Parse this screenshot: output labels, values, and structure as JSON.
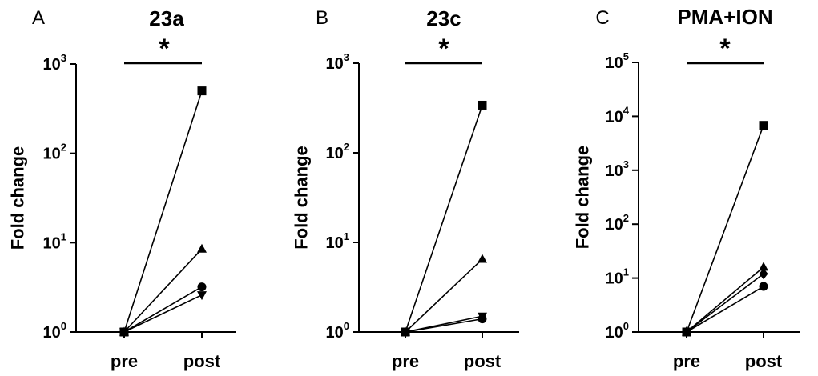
{
  "chart_data": [
    {
      "type": "line",
      "panel_label": "A",
      "title": "23a",
      "xlabel": "",
      "ylabel": "Fold change",
      "yscale": "log",
      "ylim": [
        1,
        1000
      ],
      "y_ticks": [
        {
          "base": "10",
          "exp": "0"
        },
        {
          "base": "10",
          "exp": "1"
        },
        {
          "base": "10",
          "exp": "2"
        },
        {
          "base": "10",
          "exp": "3"
        }
      ],
      "categories": [
        "pre",
        "post"
      ],
      "significance": "*",
      "series": [
        {
          "marker": "square",
          "values": [
            1,
            500
          ]
        },
        {
          "marker": "triangle-up",
          "values": [
            1,
            8.5
          ]
        },
        {
          "marker": "circle",
          "values": [
            1,
            3.2
          ]
        },
        {
          "marker": "triangle-down",
          "values": [
            1,
            2.6
          ]
        }
      ]
    },
    {
      "type": "line",
      "panel_label": "B",
      "title": "23c",
      "xlabel": "",
      "ylabel": "Fold change",
      "yscale": "log",
      "ylim": [
        1,
        1000
      ],
      "y_ticks": [
        {
          "base": "10",
          "exp": "0"
        },
        {
          "base": "10",
          "exp": "1"
        },
        {
          "base": "10",
          "exp": "2"
        },
        {
          "base": "10",
          "exp": "3"
        }
      ],
      "categories": [
        "pre",
        "post"
      ],
      "significance": "*",
      "series": [
        {
          "marker": "square",
          "values": [
            1,
            340
          ]
        },
        {
          "marker": "triangle-up",
          "values": [
            1,
            6.5
          ]
        },
        {
          "marker": "triangle-down",
          "values": [
            1,
            1.5
          ]
        },
        {
          "marker": "circle",
          "values": [
            1,
            1.4
          ]
        }
      ]
    },
    {
      "type": "line",
      "panel_label": "C",
      "title": "PMA+ION",
      "xlabel": "",
      "ylabel": "Fold change",
      "yscale": "log",
      "ylim": [
        1,
        100000
      ],
      "y_ticks": [
        {
          "base": "10",
          "exp": "0"
        },
        {
          "base": "10",
          "exp": "1"
        },
        {
          "base": "10",
          "exp": "2"
        },
        {
          "base": "10",
          "exp": "3"
        },
        {
          "base": "10",
          "exp": "4"
        },
        {
          "base": "10",
          "exp": "5"
        }
      ],
      "categories": [
        "pre",
        "post"
      ],
      "significance": "*",
      "series": [
        {
          "marker": "square",
          "values": [
            1,
            6800
          ]
        },
        {
          "marker": "triangle-up",
          "values": [
            1,
            16
          ]
        },
        {
          "marker": "diamond",
          "values": [
            1,
            12
          ]
        },
        {
          "marker": "circle",
          "values": [
            1,
            7
          ]
        }
      ]
    }
  ]
}
